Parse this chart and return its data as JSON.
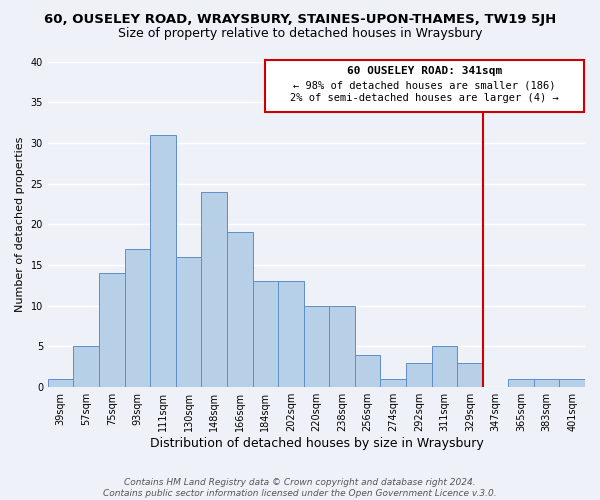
{
  "title": "60, OUSELEY ROAD, WRAYSBURY, STAINES-UPON-THAMES, TW19 5JH",
  "subtitle": "Size of property relative to detached houses in Wraysbury",
  "xlabel": "Distribution of detached houses by size in Wraysbury",
  "ylabel": "Number of detached properties",
  "bar_labels": [
    "39sqm",
    "57sqm",
    "75sqm",
    "93sqm",
    "111sqm",
    "130sqm",
    "148sqm",
    "166sqm",
    "184sqm",
    "202sqm",
    "220sqm",
    "238sqm",
    "256sqm",
    "274sqm",
    "292sqm",
    "311sqm",
    "329sqm",
    "347sqm",
    "365sqm",
    "383sqm",
    "401sqm"
  ],
  "bar_heights": [
    1,
    5,
    14,
    17,
    31,
    16,
    24,
    19,
    13,
    13,
    10,
    10,
    4,
    1,
    3,
    5,
    3,
    0,
    1,
    1,
    1
  ],
  "bar_color": "#b8cfe8",
  "bar_edge_color": "#5b8fc9",
  "ylim": [
    0,
    40
  ],
  "yticks": [
    0,
    5,
    10,
    15,
    20,
    25,
    30,
    35,
    40
  ],
  "vline_color": "#cc0000",
  "annotation_title": "60 OUSELEY ROAD: 341sqm",
  "annotation_line1": "← 98% of detached houses are smaller (186)",
  "annotation_line2": "2% of semi-detached houses are larger (4) →",
  "annotation_box_color": "#cc0000",
  "footer_line1": "Contains HM Land Registry data © Crown copyright and database right 2024.",
  "footer_line2": "Contains public sector information licensed under the Open Government Licence v.3.0.",
  "background_color": "#eef2f8",
  "grid_color": "#ffffff",
  "title_fontsize": 9.5,
  "subtitle_fontsize": 9,
  "xlabel_fontsize": 9,
  "ylabel_fontsize": 8,
  "tick_fontsize": 7,
  "footer_fontsize": 6.5
}
